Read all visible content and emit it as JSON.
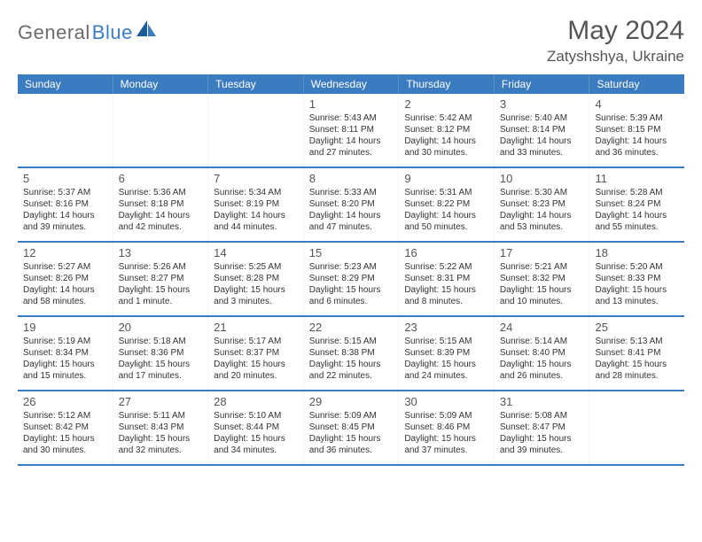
{
  "brand": {
    "text1": "General",
    "text2": "Blue"
  },
  "title": "May 2024",
  "location": "Zatyshshya, Ukraine",
  "colors": {
    "header_bg": "#3b7bbf",
    "header_text": "#ffffff",
    "border": "#3b7bbf",
    "body_text": "#333333",
    "title_text": "#555555",
    "logo_gray": "#6b6b6b",
    "logo_blue": "#3b7bbf",
    "background": "#ffffff"
  },
  "typography": {
    "title_fontsize": 30,
    "location_fontsize": 17,
    "weekday_fontsize": 12,
    "daynum_fontsize": 13,
    "info_fontsize": 10
  },
  "weekdays": [
    "Sunday",
    "Monday",
    "Tuesday",
    "Wednesday",
    "Thursday",
    "Friday",
    "Saturday"
  ],
  "weeks": [
    [
      null,
      null,
      null,
      {
        "day": "1",
        "lines": [
          "Sunrise: 5:43 AM",
          "Sunset: 8:11 PM",
          "Daylight: 14 hours",
          "and 27 minutes."
        ]
      },
      {
        "day": "2",
        "lines": [
          "Sunrise: 5:42 AM",
          "Sunset: 8:12 PM",
          "Daylight: 14 hours",
          "and 30 minutes."
        ]
      },
      {
        "day": "3",
        "lines": [
          "Sunrise: 5:40 AM",
          "Sunset: 8:14 PM",
          "Daylight: 14 hours",
          "and 33 minutes."
        ]
      },
      {
        "day": "4",
        "lines": [
          "Sunrise: 5:39 AM",
          "Sunset: 8:15 PM",
          "Daylight: 14 hours",
          "and 36 minutes."
        ]
      }
    ],
    [
      {
        "day": "5",
        "lines": [
          "Sunrise: 5:37 AM",
          "Sunset: 8:16 PM",
          "Daylight: 14 hours",
          "and 39 minutes."
        ]
      },
      {
        "day": "6",
        "lines": [
          "Sunrise: 5:36 AM",
          "Sunset: 8:18 PM",
          "Daylight: 14 hours",
          "and 42 minutes."
        ]
      },
      {
        "day": "7",
        "lines": [
          "Sunrise: 5:34 AM",
          "Sunset: 8:19 PM",
          "Daylight: 14 hours",
          "and 44 minutes."
        ]
      },
      {
        "day": "8",
        "lines": [
          "Sunrise: 5:33 AM",
          "Sunset: 8:20 PM",
          "Daylight: 14 hours",
          "and 47 minutes."
        ]
      },
      {
        "day": "9",
        "lines": [
          "Sunrise: 5:31 AM",
          "Sunset: 8:22 PM",
          "Daylight: 14 hours",
          "and 50 minutes."
        ]
      },
      {
        "day": "10",
        "lines": [
          "Sunrise: 5:30 AM",
          "Sunset: 8:23 PM",
          "Daylight: 14 hours",
          "and 53 minutes."
        ]
      },
      {
        "day": "11",
        "lines": [
          "Sunrise: 5:28 AM",
          "Sunset: 8:24 PM",
          "Daylight: 14 hours",
          "and 55 minutes."
        ]
      }
    ],
    [
      {
        "day": "12",
        "lines": [
          "Sunrise: 5:27 AM",
          "Sunset: 8:26 PM",
          "Daylight: 14 hours",
          "and 58 minutes."
        ]
      },
      {
        "day": "13",
        "lines": [
          "Sunrise: 5:26 AM",
          "Sunset: 8:27 PM",
          "Daylight: 15 hours",
          "and 1 minute."
        ]
      },
      {
        "day": "14",
        "lines": [
          "Sunrise: 5:25 AM",
          "Sunset: 8:28 PM",
          "Daylight: 15 hours",
          "and 3 minutes."
        ]
      },
      {
        "day": "15",
        "lines": [
          "Sunrise: 5:23 AM",
          "Sunset: 8:29 PM",
          "Daylight: 15 hours",
          "and 6 minutes."
        ]
      },
      {
        "day": "16",
        "lines": [
          "Sunrise: 5:22 AM",
          "Sunset: 8:31 PM",
          "Daylight: 15 hours",
          "and 8 minutes."
        ]
      },
      {
        "day": "17",
        "lines": [
          "Sunrise: 5:21 AM",
          "Sunset: 8:32 PM",
          "Daylight: 15 hours",
          "and 10 minutes."
        ]
      },
      {
        "day": "18",
        "lines": [
          "Sunrise: 5:20 AM",
          "Sunset: 8:33 PM",
          "Daylight: 15 hours",
          "and 13 minutes."
        ]
      }
    ],
    [
      {
        "day": "19",
        "lines": [
          "Sunrise: 5:19 AM",
          "Sunset: 8:34 PM",
          "Daylight: 15 hours",
          "and 15 minutes."
        ]
      },
      {
        "day": "20",
        "lines": [
          "Sunrise: 5:18 AM",
          "Sunset: 8:36 PM",
          "Daylight: 15 hours",
          "and 17 minutes."
        ]
      },
      {
        "day": "21",
        "lines": [
          "Sunrise: 5:17 AM",
          "Sunset: 8:37 PM",
          "Daylight: 15 hours",
          "and 20 minutes."
        ]
      },
      {
        "day": "22",
        "lines": [
          "Sunrise: 5:15 AM",
          "Sunset: 8:38 PM",
          "Daylight: 15 hours",
          "and 22 minutes."
        ]
      },
      {
        "day": "23",
        "lines": [
          "Sunrise: 5:15 AM",
          "Sunset: 8:39 PM",
          "Daylight: 15 hours",
          "and 24 minutes."
        ]
      },
      {
        "day": "24",
        "lines": [
          "Sunrise: 5:14 AM",
          "Sunset: 8:40 PM",
          "Daylight: 15 hours",
          "and 26 minutes."
        ]
      },
      {
        "day": "25",
        "lines": [
          "Sunrise: 5:13 AM",
          "Sunset: 8:41 PM",
          "Daylight: 15 hours",
          "and 28 minutes."
        ]
      }
    ],
    [
      {
        "day": "26",
        "lines": [
          "Sunrise: 5:12 AM",
          "Sunset: 8:42 PM",
          "Daylight: 15 hours",
          "and 30 minutes."
        ]
      },
      {
        "day": "27",
        "lines": [
          "Sunrise: 5:11 AM",
          "Sunset: 8:43 PM",
          "Daylight: 15 hours",
          "and 32 minutes."
        ]
      },
      {
        "day": "28",
        "lines": [
          "Sunrise: 5:10 AM",
          "Sunset: 8:44 PM",
          "Daylight: 15 hours",
          "and 34 minutes."
        ]
      },
      {
        "day": "29",
        "lines": [
          "Sunrise: 5:09 AM",
          "Sunset: 8:45 PM",
          "Daylight: 15 hours",
          "and 36 minutes."
        ]
      },
      {
        "day": "30",
        "lines": [
          "Sunrise: 5:09 AM",
          "Sunset: 8:46 PM",
          "Daylight: 15 hours",
          "and 37 minutes."
        ]
      },
      {
        "day": "31",
        "lines": [
          "Sunrise: 5:08 AM",
          "Sunset: 8:47 PM",
          "Daylight: 15 hours",
          "and 39 minutes."
        ]
      },
      null
    ]
  ]
}
